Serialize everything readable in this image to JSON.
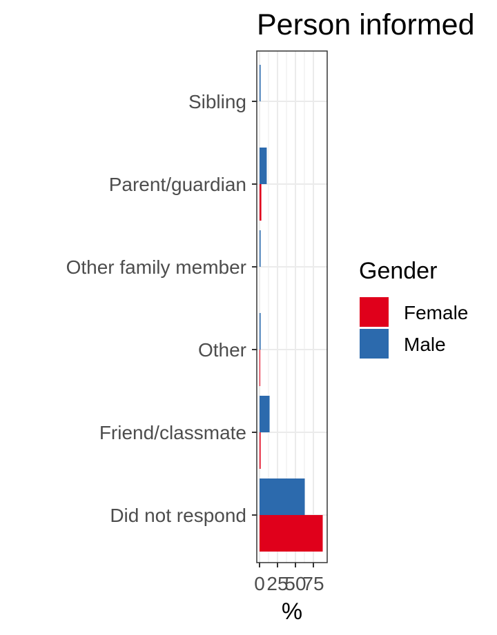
{
  "chart_data": {
    "type": "bar",
    "orientation": "horizontal",
    "title": "Person informed",
    "xlabel": "%",
    "ylabel": "",
    "xlim": [
      0,
      90
    ],
    "x_ticks": [
      0,
      25,
      50,
      75
    ],
    "x_tick_labels": [
      "0",
      "25",
      "50",
      "75"
    ],
    "categories": [
      "Did not respond",
      "Friend/classmate",
      "Other",
      "Other family member",
      "Parent/guardian",
      "Sibling"
    ],
    "series": [
      {
        "name": "Female",
        "color": "#e0001b",
        "values": [
          88,
          1.5,
          0.5,
          0,
          2.5,
          0
        ]
      },
      {
        "name": "Male",
        "color": "#2c6aad",
        "values": [
          63,
          14,
          1.5,
          1.5,
          10,
          1.5
        ]
      }
    ],
    "legend": {
      "title": "Gender",
      "position": "right"
    },
    "grid": true
  }
}
